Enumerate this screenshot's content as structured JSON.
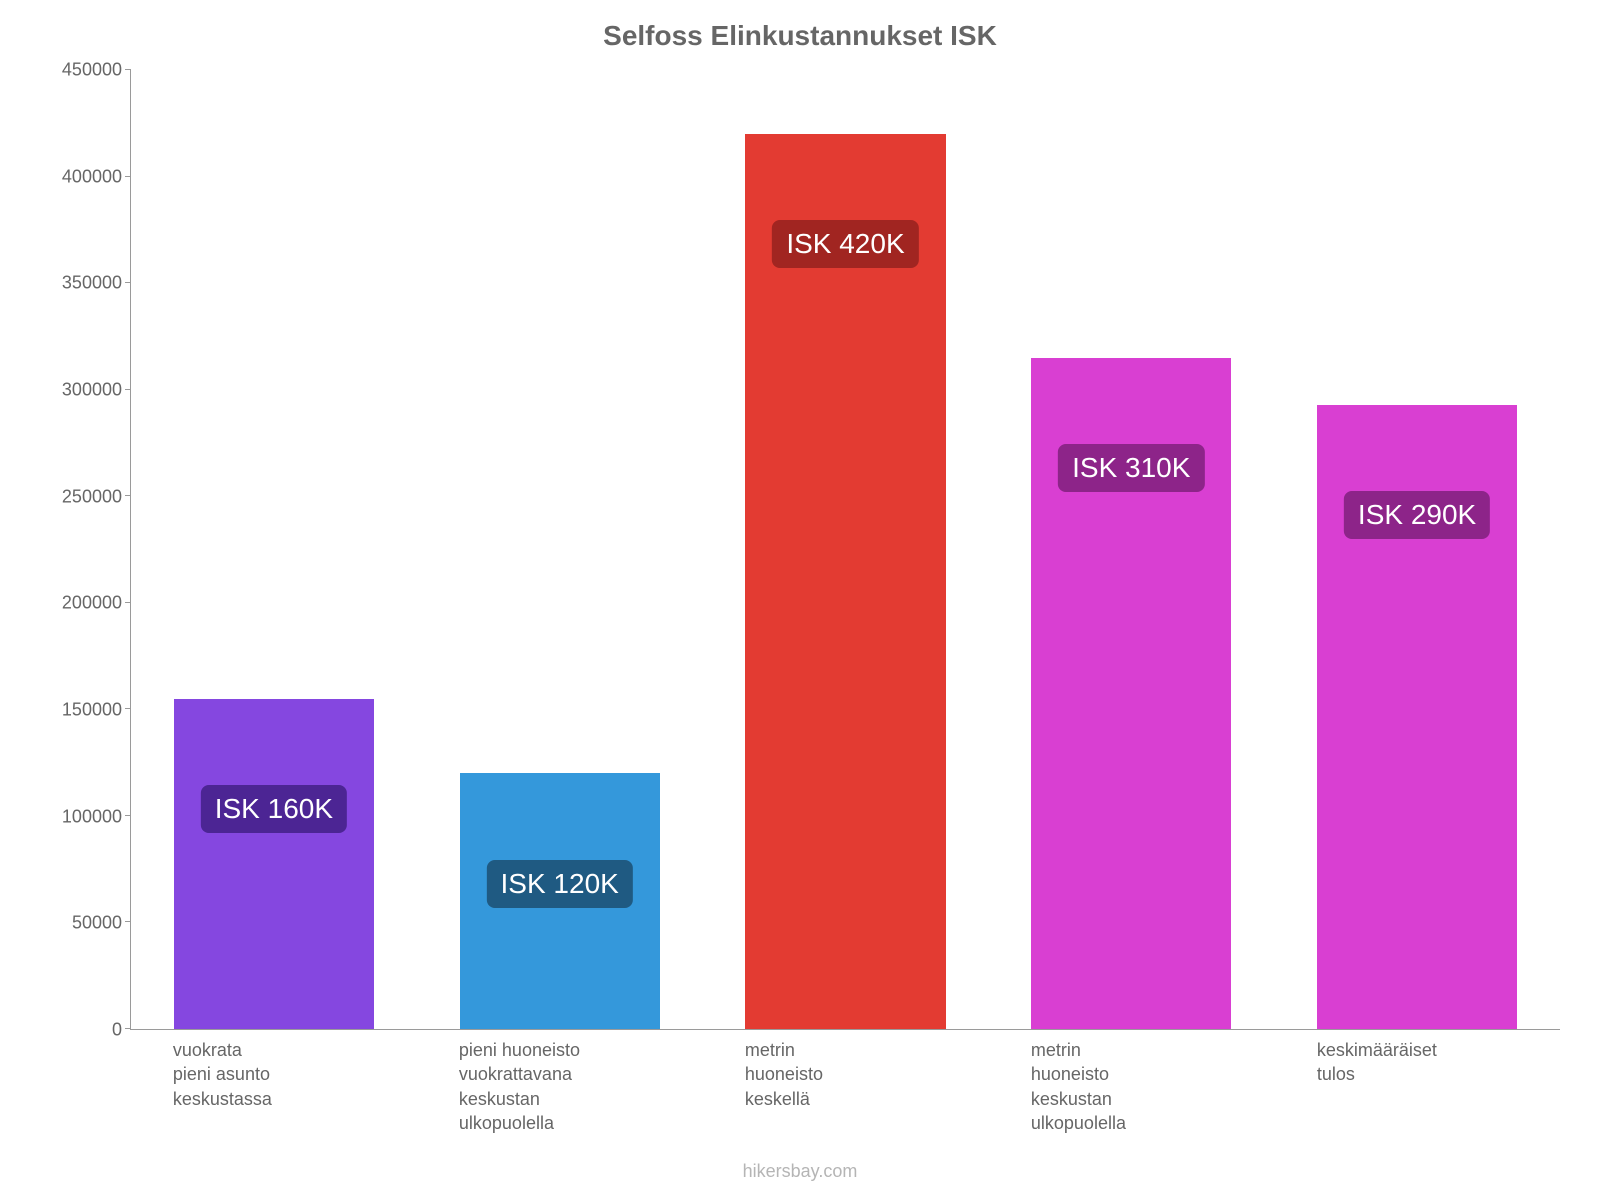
{
  "chart": {
    "type": "bar",
    "title": "Selfoss Elinkustannukset ISK",
    "title_fontsize": 28,
    "title_color": "#666666",
    "background_color": "#ffffff",
    "axis_color": "#9a9a9a",
    "tick_color": "#666666",
    "tick_fontsize": 18,
    "label_fontsize": 18,
    "ylim_min": 0,
    "ylim_max": 450000,
    "ytick_step": 50000,
    "yticks": [
      0,
      50000,
      100000,
      150000,
      200000,
      250000,
      300000,
      350000,
      400000,
      450000
    ],
    "bar_width_pct": 14,
    "bar_gap_pct": 20,
    "bars": [
      {
        "raw_value": 155000,
        "display_value": "ISK 160K",
        "fill": "#8547e0",
        "label_bg": "#4c2594",
        "xlabel": "vuokrata\npieni asunto\nkeskustassa"
      },
      {
        "raw_value": 120000,
        "display_value": "ISK 120K",
        "fill": "#3498db",
        "label_bg": "#1f5a82",
        "xlabel": "pieni huoneisto\nvuokrattavana\nkeskustan\nulkopuolella"
      },
      {
        "raw_value": 420000,
        "display_value": "ISK 420K",
        "fill": "#e33b32",
        "label_bg": "#a12521",
        "xlabel": "metrin\nhuoneisto\nkeskellä"
      },
      {
        "raw_value": 315000,
        "display_value": "ISK 310K",
        "fill": "#d93fd2",
        "label_bg": "#8d2489",
        "xlabel": "metrin\nhuoneisto\nkeskustan\nulkopuolella"
      },
      {
        "raw_value": 293000,
        "display_value": "ISK 290K",
        "fill": "#d93fd2",
        "label_bg": "#8d2489",
        "xlabel": "keskimääräiset\ntulos"
      }
    ]
  },
  "watermark": "hikersbay.com"
}
